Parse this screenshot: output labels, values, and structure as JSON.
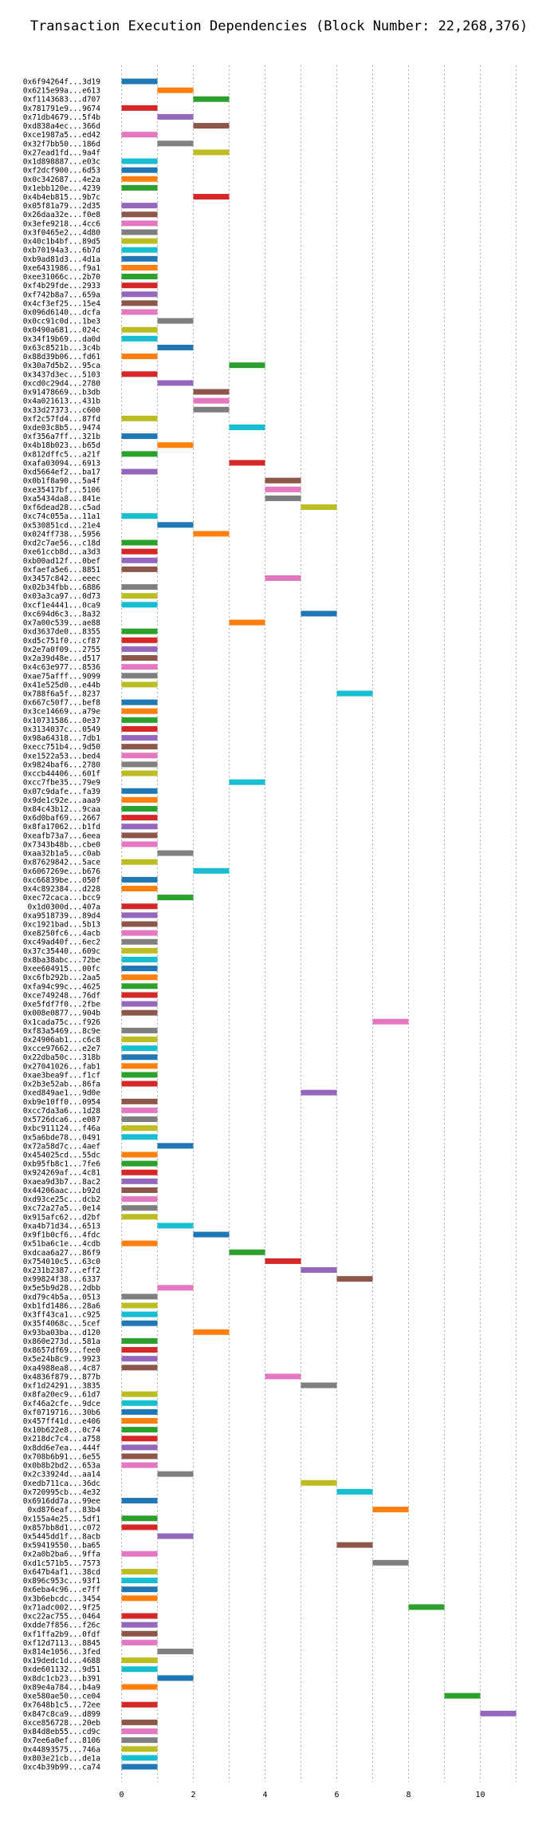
{
  "chart_data": {
    "type": "bar",
    "orientation": "horizontal",
    "title": "Transaction Execution Dependencies (Block Number: 22,268,376)",
    "xlabel": "",
    "ylabel": "",
    "xlim": [
      -0.5,
      11.5
    ],
    "xticks": [
      0,
      2,
      4,
      6,
      8,
      10
    ],
    "grid": true,
    "bar_length": 1,
    "palette": [
      "#1f77b4",
      "#ff7f0e",
      "#2ca02c",
      "#d62728",
      "#9467bd",
      "#8c564b",
      "#e377c2",
      "#7f7f7f",
      "#bcbd22",
      "#17becf"
    ],
    "bars": [
      {
        "label": "0x6f94264f...3d19",
        "start": 0
      },
      {
        "label": "0x6215e99a...e613",
        "start": 1
      },
      {
        "label": "0xf1143683...d707",
        "start": 2
      },
      {
        "label": "0x781791e9...9674",
        "start": 0
      },
      {
        "label": "0x71db4679...5f4b",
        "start": 1
      },
      {
        "label": "0xd838a4ec...366d",
        "start": 2
      },
      {
        "label": "0xce1987a5...ed42",
        "start": 0
      },
      {
        "label": "0x32f7bb50...186d",
        "start": 1
      },
      {
        "label": "0x27ead1fd...9a4f",
        "start": 2
      },
      {
        "label": "0x1d898887...e03c",
        "start": 0
      },
      {
        "label": "0xf2dcf900...6d53",
        "start": 0
      },
      {
        "label": "0x0c342687...4e2a",
        "start": 0
      },
      {
        "label": "0x1ebb120e...4239",
        "start": 0
      },
      {
        "label": "0x4b4eb815...9b7c",
        "start": 2
      },
      {
        "label": "0x05f81a79...2d35",
        "start": 0
      },
      {
        "label": "0x26daa32e...f0e8",
        "start": 0
      },
      {
        "label": "0x3efe9218...4cc6",
        "start": 0
      },
      {
        "label": "0x3f0465e2...4d80",
        "start": 0
      },
      {
        "label": "0x40c1b4bf...89d5",
        "start": 0
      },
      {
        "label": "0xb70194a3...6b7d",
        "start": 0
      },
      {
        "label": "0xb9ad81d3...4d1a",
        "start": 0
      },
      {
        "label": "0xe6431986...f9a1",
        "start": 0
      },
      {
        "label": "0xee31066c...2b70",
        "start": 0
      },
      {
        "label": "0xf4b29fde...2933",
        "start": 0
      },
      {
        "label": "0xf742b8a7...659a",
        "start": 0
      },
      {
        "label": "0x4cf3ef25...15e4",
        "start": 0
      },
      {
        "label": "0x096d6140...dcfa",
        "start": 0
      },
      {
        "label": "0x0cc91c0d...1be3",
        "start": 1
      },
      {
        "label": "0x0490a681...024c",
        "start": 0
      },
      {
        "label": "0x34f19b69...da0d",
        "start": 0
      },
      {
        "label": "0x63c8521b...3c4b",
        "start": 1
      },
      {
        "label": "0x88d39b06...fd61",
        "start": 0
      },
      {
        "label": "0x30a7d5b2...95ca",
        "start": 3
      },
      {
        "label": "0x3437d3ec...5103",
        "start": 0
      },
      {
        "label": "0xcd0c29d4...2780",
        "start": 1
      },
      {
        "label": "0x91478669...b3db",
        "start": 2
      },
      {
        "label": "0x4a021613...431b",
        "start": 2
      },
      {
        "label": "0x33d27373...c600",
        "start": 2
      },
      {
        "label": "0xf2c57fd4...87fd",
        "start": 0
      },
      {
        "label": "0xde03c8b5...9474",
        "start": 3
      },
      {
        "label": "0xf356a7ff...321b",
        "start": 0
      },
      {
        "label": "0x4b18b023...b65d",
        "start": 1
      },
      {
        "label": "0x812dffc5...a21f",
        "start": 0
      },
      {
        "label": "0xafa03094...6913",
        "start": 3
      },
      {
        "label": "0xd5664ef2...ba17",
        "start": 0
      },
      {
        "label": "0x0b1f8a90...5a4f",
        "start": 4
      },
      {
        "label": "0xe35417bf...5106",
        "start": 4
      },
      {
        "label": "0xa5434da8...841e",
        "start": 4
      },
      {
        "label": "0xf6dead28...c5ad",
        "start": 5
      },
      {
        "label": "0xc74c055a...11a1",
        "start": 0
      },
      {
        "label": "0x530851cd...21e4",
        "start": 1
      },
      {
        "label": "0x024ff738...5956",
        "start": 2
      },
      {
        "label": "0xd2c7ae56...c18d",
        "start": 0
      },
      {
        "label": "0xe61ccb8d...a3d3",
        "start": 0
      },
      {
        "label": "0xb00ad12f...0bef",
        "start": 0
      },
      {
        "label": "0xfaefa5e6...8851",
        "start": 0
      },
      {
        "label": "0x3457c842...eeec",
        "start": 4
      },
      {
        "label": "0x02b34fbb...6886",
        "start": 0
      },
      {
        "label": "0x03a3ca97...0d73",
        "start": 0
      },
      {
        "label": "0xcf1e4441...0ca9",
        "start": 0
      },
      {
        "label": "0xc694d6c3...8a32",
        "start": 5
      },
      {
        "label": "0x7a00c539...ae88",
        "start": 3
      },
      {
        "label": "0xd3637de0...8355",
        "start": 0
      },
      {
        "label": "0xd5c751f0...cf87",
        "start": 0
      },
      {
        "label": "0x2e7a0f09...2755",
        "start": 0
      },
      {
        "label": "0x2a39d48e...d517",
        "start": 0
      },
      {
        "label": "0x4c63e977...8536",
        "start": 0
      },
      {
        "label": "0xae75afff...9099",
        "start": 0
      },
      {
        "label": "0x41e525d0...e44b",
        "start": 0
      },
      {
        "label": "0x788f6a5f...8237",
        "start": 6
      },
      {
        "label": "0x667c50f7...bef8",
        "start": 0
      },
      {
        "label": "0x3ce14669...a79e",
        "start": 0
      },
      {
        "label": "0x10731586...0e37",
        "start": 0
      },
      {
        "label": "0x3134037c...0549",
        "start": 0
      },
      {
        "label": "0x98a64318...7db1",
        "start": 0
      },
      {
        "label": "0xecc751b4...9d50",
        "start": 0
      },
      {
        "label": "0xe1522a53...bed4",
        "start": 0
      },
      {
        "label": "0x9824baf6...2780",
        "start": 0
      },
      {
        "label": "0xccb44406...601f",
        "start": 0
      },
      {
        "label": "0xcc7fbe35...79e9",
        "start": 3
      },
      {
        "label": "0x07c9dafe...fa39",
        "start": 0
      },
      {
        "label": "0x9de1c92e...aaa9",
        "start": 0
      },
      {
        "label": "0x84c43b12...9caa",
        "start": 0
      },
      {
        "label": "0x6d0baf69...2667",
        "start": 0
      },
      {
        "label": "0x8fa17062...b1fd",
        "start": 0
      },
      {
        "label": "0xeafb73a7...6eea",
        "start": 0
      },
      {
        "label": "0x7343b48b...cbe0",
        "start": 0
      },
      {
        "label": "0xaa32b1a5...c0ab",
        "start": 1
      },
      {
        "label": "0x87629842...5ace",
        "start": 0
      },
      {
        "label": "0x6067269e...b676",
        "start": 2
      },
      {
        "label": "0xc66839be...050f",
        "start": 0
      },
      {
        "label": "0x4c892384...d228",
        "start": 0
      },
      {
        "label": "0xec72caca...bcc9",
        "start": 1
      },
      {
        "label": "0x1d0300d...407a",
        "start": 0
      },
      {
        "label": "0xa9518739...89d4",
        "start": 0
      },
      {
        "label": "0xc1921bad...5b13",
        "start": 0
      },
      {
        "label": "0xe8250fc6...4acb",
        "start": 0
      },
      {
        "label": "0xc49ad40f...6ec2",
        "start": 0
      },
      {
        "label": "0x37c35440...609c",
        "start": 0
      },
      {
        "label": "0x8ba38abc...72be",
        "start": 0
      },
      {
        "label": "0xee604915...00fc",
        "start": 0
      },
      {
        "label": "0xc6fb292b...2aa5",
        "start": 0
      },
      {
        "label": "0xfa94c99c...4625",
        "start": 0
      },
      {
        "label": "0xce749248...76df",
        "start": 0
      },
      {
        "label": "0xe5fdf7f0...2fbe",
        "start": 0
      },
      {
        "label": "0x008e0877...904b",
        "start": 0
      },
      {
        "label": "0x1cada75c...f926",
        "start": 7
      },
      {
        "label": "0xf83a5469...8c9e",
        "start": 0
      },
      {
        "label": "0x24906ab1...c6c8",
        "start": 0
      },
      {
        "label": "0xcce97662...e2e7",
        "start": 0
      },
      {
        "label": "0x22dba50c...318b",
        "start": 0
      },
      {
        "label": "0x27041026...fab1",
        "start": 0
      },
      {
        "label": "0xae3bea9f...f1cf",
        "start": 0
      },
      {
        "label": "0x2b3e52ab...86fa",
        "start": 0
      },
      {
        "label": "0xed849ae1...9d0e",
        "start": 5
      },
      {
        "label": "0xb9e10ff0...0954",
        "start": 0
      },
      {
        "label": "0xcc7da3a6...1d28",
        "start": 0
      },
      {
        "label": "0x5726dca6...e087",
        "start": 0
      },
      {
        "label": "0xbc911124...f46a",
        "start": 0
      },
      {
        "label": "0x5a6bde78...0491",
        "start": 0
      },
      {
        "label": "0x72a58d7c...4aef",
        "start": 1
      },
      {
        "label": "0x454025cd...55dc",
        "start": 0
      },
      {
        "label": "0xb95fb8c1...7fe6",
        "start": 0
      },
      {
        "label": "0x924269af...4c81",
        "start": 0
      },
      {
        "label": "0xaea9d3b7...8ac2",
        "start": 0
      },
      {
        "label": "0x44206aac...b92d",
        "start": 0
      },
      {
        "label": "0xd93ce25c...dcb2",
        "start": 0
      },
      {
        "label": "0xc72a27a5...0e14",
        "start": 0
      },
      {
        "label": "0x915afc62...d2bf",
        "start": 0
      },
      {
        "label": "0xa4b71d34...6513",
        "start": 1
      },
      {
        "label": "0x9f1b0cf6...4fdc",
        "start": 2
      },
      {
        "label": "0x51ba6c1e...4cdb",
        "start": 0
      },
      {
        "label": "0xdcaa6a27...86f9",
        "start": 3
      },
      {
        "label": "0x754010c5...63c0",
        "start": 4
      },
      {
        "label": "0x231b2387...eff2",
        "start": 5
      },
      {
        "label": "0x99824f38...6337",
        "start": 6
      },
      {
        "label": "0x5e5b9d28...2dbb",
        "start": 1
      },
      {
        "label": "0xd79c4b5a...0513",
        "start": 0
      },
      {
        "label": "0xb1fd1486...28a6",
        "start": 0
      },
      {
        "label": "0x3ff43ca1...c925",
        "start": 0
      },
      {
        "label": "0x35f4068c...5cef",
        "start": 0
      },
      {
        "label": "0x93ba03ba...d120",
        "start": 2
      },
      {
        "label": "0x860e273d...581a",
        "start": 0
      },
      {
        "label": "0x8657df69...fee0",
        "start": 0
      },
      {
        "label": "0x5e24b8c9...9923",
        "start": 0
      },
      {
        "label": "0xa4988ea8...4c87",
        "start": 0
      },
      {
        "label": "0x4836f879...877b",
        "start": 4
      },
      {
        "label": "0xf1d24291...3835",
        "start": 5
      },
      {
        "label": "0x8fa20ec9...61d7",
        "start": 0
      },
      {
        "label": "0xf46a2cfe...9dce",
        "start": 0
      },
      {
        "label": "0xf0719716...30b6",
        "start": 0
      },
      {
        "label": "0x457ff41d...e406",
        "start": 0
      },
      {
        "label": "0x10b622e8...0c74",
        "start": 0
      },
      {
        "label": "0x218dc7c4...a758",
        "start": 0
      },
      {
        "label": "0x8dd6e7ea...444f",
        "start": 0
      },
      {
        "label": "0x708b6b91...6e55",
        "start": 0
      },
      {
        "label": "0x0b8b2bd2...653a",
        "start": 0
      },
      {
        "label": "0x2c33924d...aa14",
        "start": 1
      },
      {
        "label": "0xedb711ca...36dc",
        "start": 5
      },
      {
        "label": "0x720995cb...4e32",
        "start": 6
      },
      {
        "label": "0x6916dd7a...99ee",
        "start": 0
      },
      {
        "label": "0xd876eaf...83b4",
        "start": 7
      },
      {
        "label": "0x155a4e25...5df1",
        "start": 0
      },
      {
        "label": "0x857bb8d1...c072",
        "start": 0
      },
      {
        "label": "0x5445dd1f...8acb",
        "start": 1
      },
      {
        "label": "0x59419550...ba65",
        "start": 6
      },
      {
        "label": "0x2a0b2ba6...9ffa",
        "start": 0
      },
      {
        "label": "0xd1c571b5...7573",
        "start": 7
      },
      {
        "label": "0x647b4af1...38cd",
        "start": 0
      },
      {
        "label": "0x896c953c...93f1",
        "start": 0
      },
      {
        "label": "0x6eba4c96...e7ff",
        "start": 0
      },
      {
        "label": "0x3b6ebcdc...3454",
        "start": 0
      },
      {
        "label": "0x71adc002...9f25",
        "start": 8
      },
      {
        "label": "0xc22ac755...0464",
        "start": 0
      },
      {
        "label": "0xdde7f856...f26c",
        "start": 0
      },
      {
        "label": "0xf1ffa2b9...0fdf",
        "start": 0
      },
      {
        "label": "0xf12d7113...8845",
        "start": 0
      },
      {
        "label": "0x814e1056...3fed",
        "start": 1
      },
      {
        "label": "0x19dedc1d...4688",
        "start": 0
      },
      {
        "label": "0xde601132...9d51",
        "start": 0
      },
      {
        "label": "0x8dc1cb23...b391",
        "start": 1
      },
      {
        "label": "0x89e4a784...b4a9",
        "start": 0
      },
      {
        "label": "0xe580ae50...ce04",
        "start": 9
      },
      {
        "label": "0x7648b1c5...72ee",
        "start": 0
      },
      {
        "label": "0x847c8ca9...d899",
        "start": 10
      },
      {
        "label": "0xce856728...20eb",
        "start": 0
      },
      {
        "label": "0x84d8eb55...cd9c",
        "start": 0
      },
      {
        "label": "0x7ee6a0ef...8106",
        "start": 0
      },
      {
        "label": "0x44893575...746a",
        "start": 0
      },
      {
        "label": "0x803e21cb...de1a",
        "start": 0
      },
      {
        "label": "0xc4b39b99...ca74",
        "start": 0
      }
    ]
  }
}
